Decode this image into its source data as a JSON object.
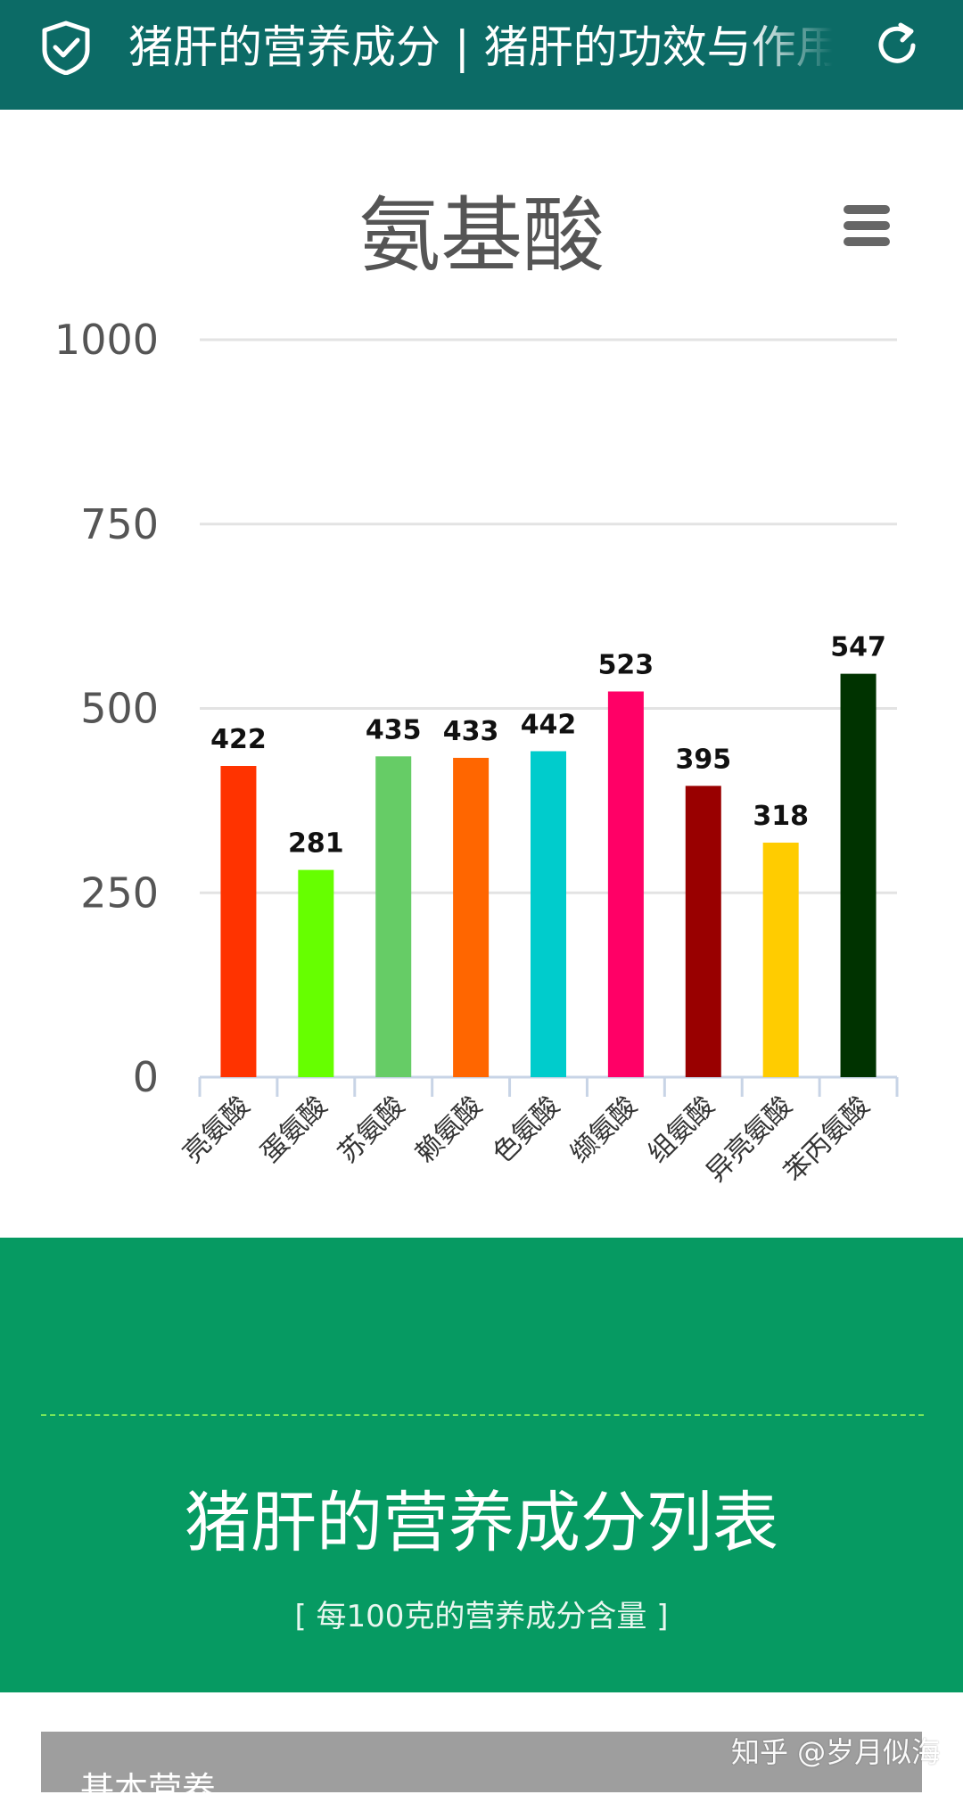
{
  "header": {
    "title": "猪肝的营养成分 | 猪肝的功效与作用",
    "shield_icon": "shield-check-icon",
    "refresh_icon": "refresh-icon",
    "background": "#0c6b66"
  },
  "chart_menu_icon": "hamburger-menu-icon",
  "chart_data": {
    "type": "bar",
    "title": "氨基酸",
    "categories": [
      "亮氨酸",
      "蛋氨酸",
      "苏氨酸",
      "赖氨酸",
      "色氨酸",
      "缬氨酸",
      "组氨酸",
      "异亮氨酸",
      "苯丙氨酸"
    ],
    "values": [
      422,
      281,
      435,
      433,
      442,
      523,
      395,
      318,
      547
    ],
    "colors": [
      "#ff3300",
      "#66ff00",
      "#66cc66",
      "#ff6600",
      "#00cccc",
      "#ff0066",
      "#990000",
      "#ffcc00",
      "#003300"
    ],
    "ylim": [
      0,
      1000
    ],
    "yticks": [
      0,
      250,
      500,
      750,
      1000
    ],
    "grid": true,
    "data_labels": true
  },
  "section": {
    "title": "猪肝的营养成分列表",
    "subtitle": "[ 每100克的营养成分含量 ]",
    "background": "#069a62"
  },
  "table": {
    "header": "基本营养"
  },
  "watermark": "知乎 @岁月似海"
}
